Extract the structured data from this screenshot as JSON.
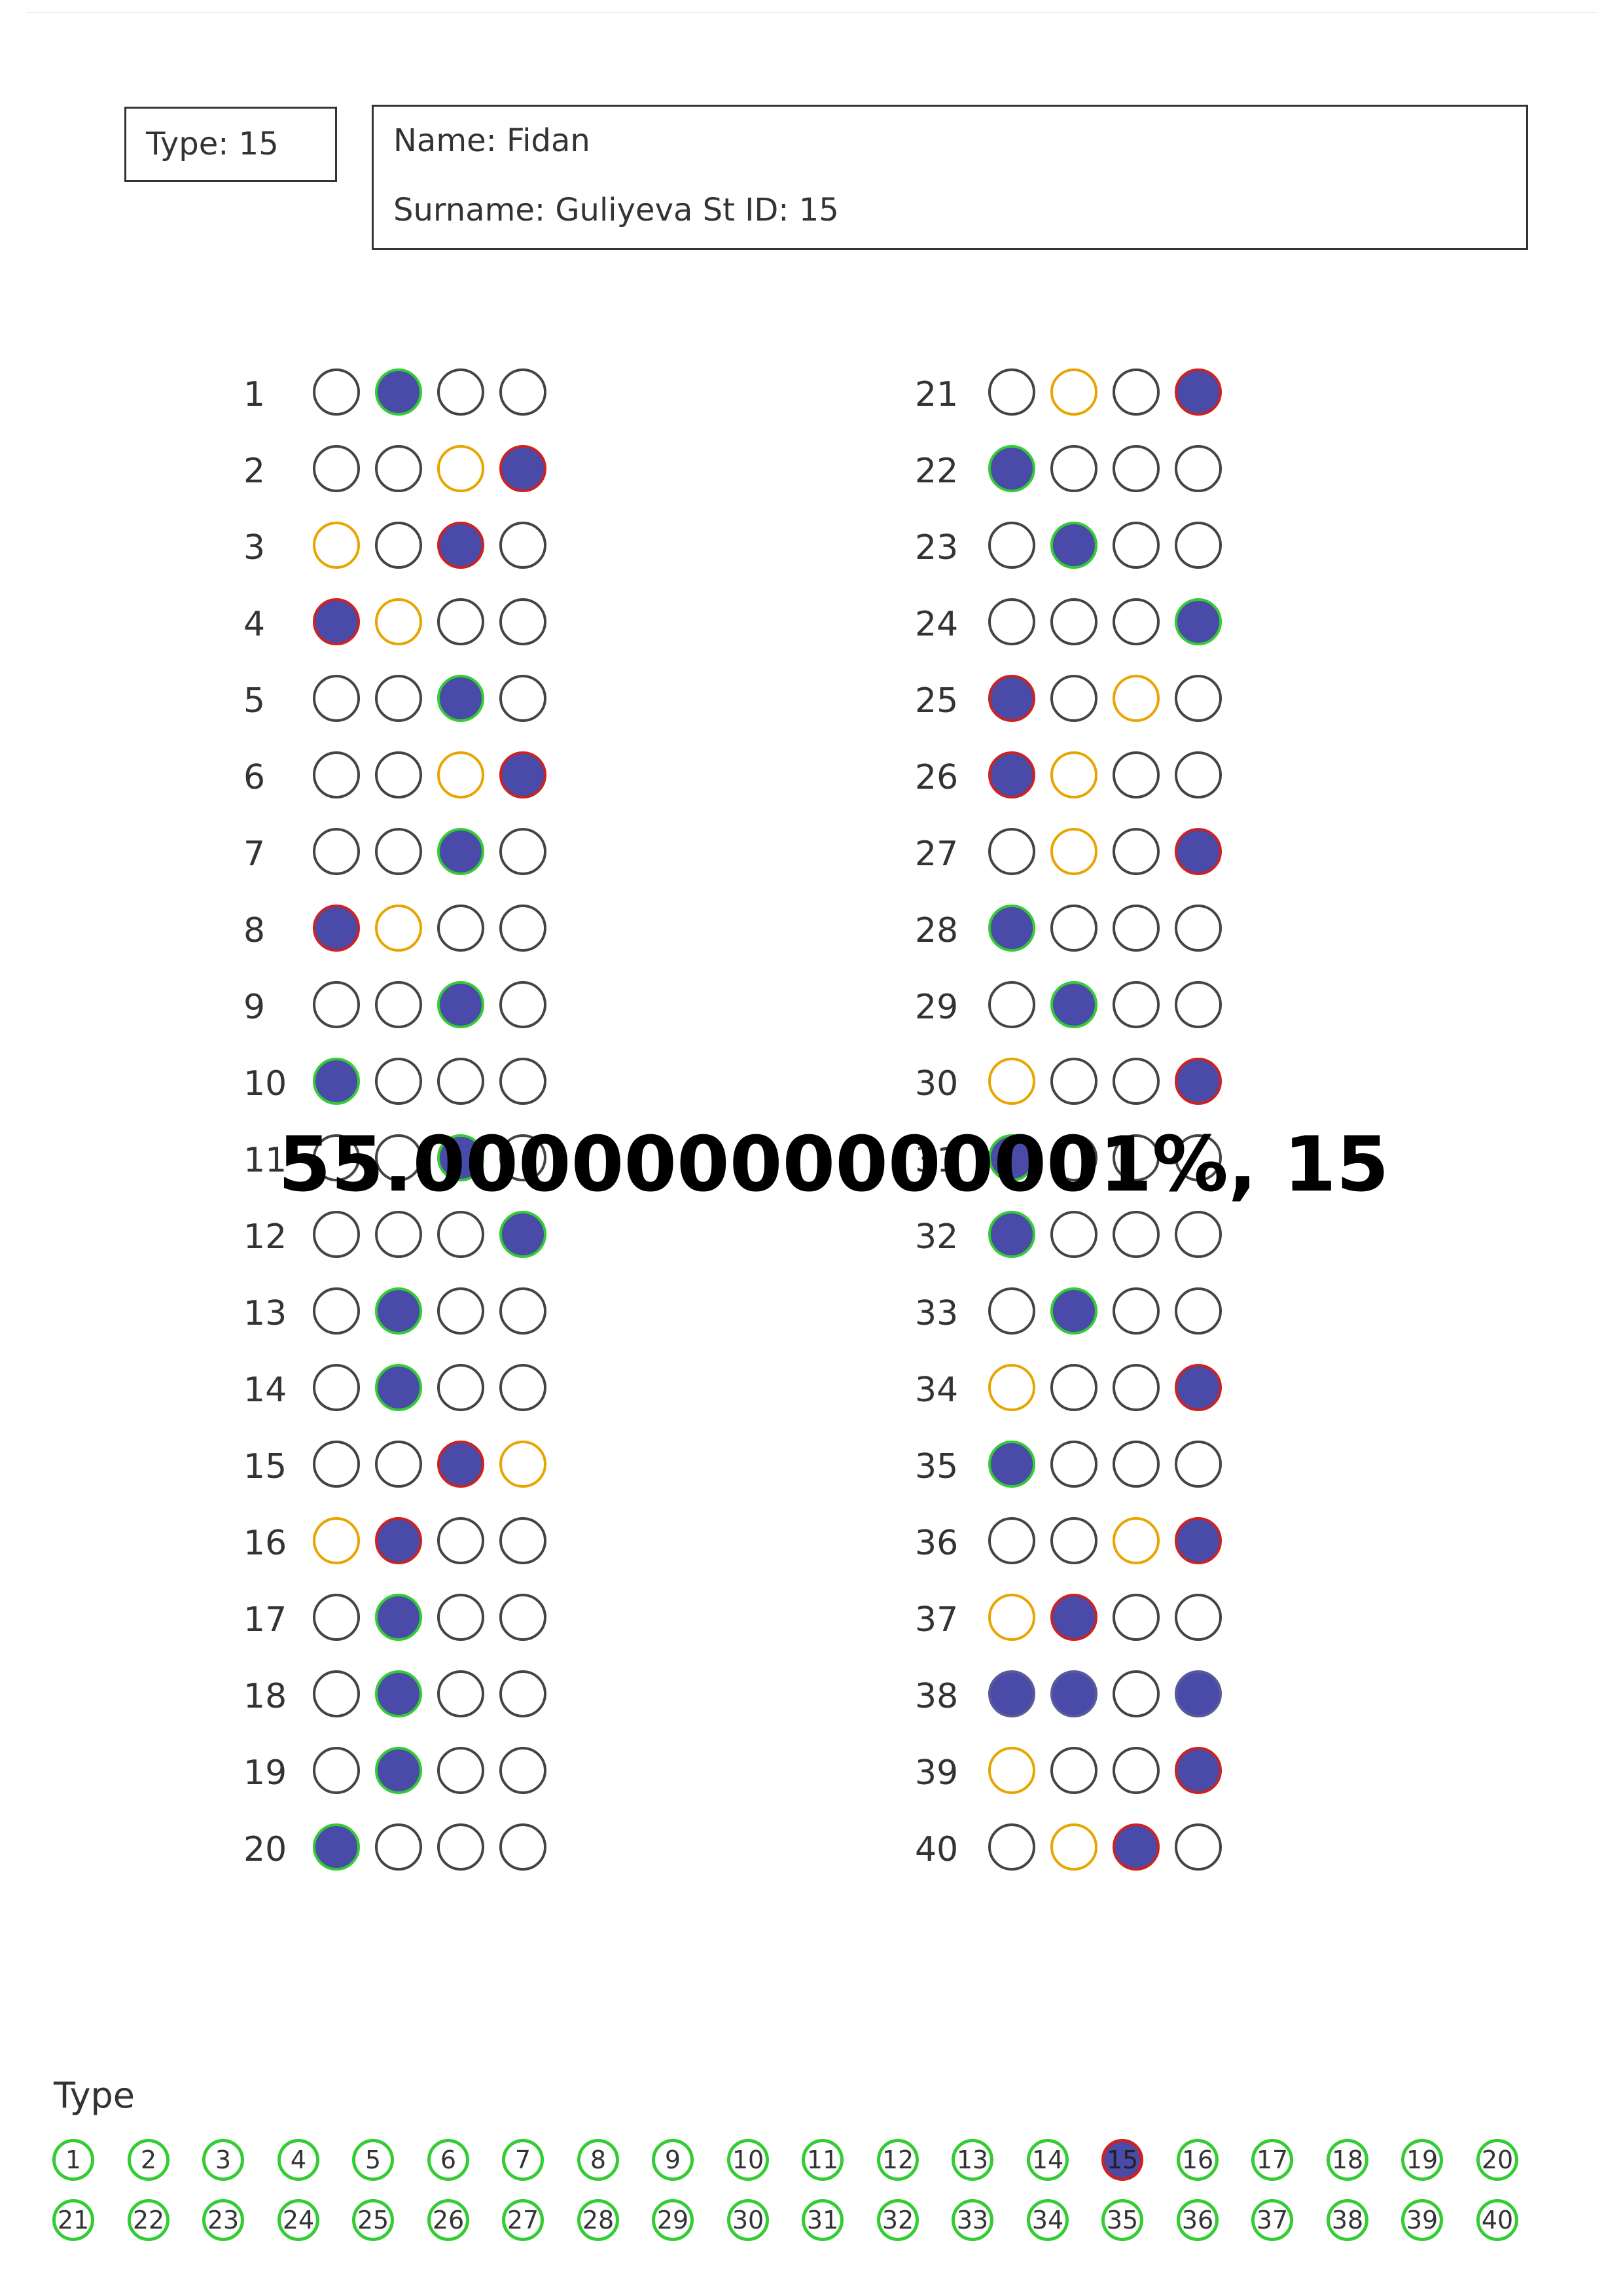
{
  "header": {
    "type_label": "Type:  15",
    "name_label": "Name: Fidan",
    "surname_label": "Surname: Guliyeva  St ID: 15"
  },
  "overlay_text": "55.00000000000001%, 15",
  "colors": {
    "fill": "#4a4aa8",
    "correct": "#33cc33",
    "wrong": "#cc2222",
    "expected": "#e8a500",
    "outline": "#333333"
  },
  "questions": [
    {
      "n": "1",
      "b": [
        "e",
        "fg",
        "e",
        "e"
      ]
    },
    {
      "n": "2",
      "b": [
        "e",
        "e",
        "o",
        "fr"
      ]
    },
    {
      "n": "3",
      "b": [
        "o",
        "e",
        "fr",
        "e"
      ]
    },
    {
      "n": "4",
      "b": [
        "fr",
        "o",
        "e",
        "e"
      ]
    },
    {
      "n": "5",
      "b": [
        "e",
        "e",
        "fg",
        "e"
      ]
    },
    {
      "n": "6",
      "b": [
        "e",
        "e",
        "o",
        "fr"
      ]
    },
    {
      "n": "7",
      "b": [
        "e",
        "e",
        "fg",
        "e"
      ]
    },
    {
      "n": "8",
      "b": [
        "fr",
        "o",
        "e",
        "e"
      ]
    },
    {
      "n": "9",
      "b": [
        "e",
        "e",
        "fg",
        "e"
      ]
    },
    {
      "n": "10",
      "b": [
        "fg",
        "e",
        "e",
        "e"
      ]
    },
    {
      "n": "11",
      "b": [
        "e",
        "e",
        "fg",
        "e"
      ]
    },
    {
      "n": "12",
      "b": [
        "e",
        "e",
        "e",
        "fg"
      ]
    },
    {
      "n": "13",
      "b": [
        "e",
        "fg",
        "e",
        "e"
      ]
    },
    {
      "n": "14",
      "b": [
        "e",
        "fg",
        "e",
        "e"
      ]
    },
    {
      "n": "15",
      "b": [
        "e",
        "e",
        "fr",
        "o"
      ]
    },
    {
      "n": "16",
      "b": [
        "o",
        "fr",
        "e",
        "e"
      ]
    },
    {
      "n": "17",
      "b": [
        "e",
        "fg",
        "e",
        "e"
      ]
    },
    {
      "n": "18",
      "b": [
        "e",
        "fg",
        "e",
        "e"
      ]
    },
    {
      "n": "19",
      "b": [
        "e",
        "fg",
        "e",
        "e"
      ]
    },
    {
      "n": "20",
      "b": [
        "fg",
        "e",
        "e",
        "e"
      ]
    },
    {
      "n": "21",
      "b": [
        "e",
        "o",
        "e",
        "fr"
      ]
    },
    {
      "n": "22",
      "b": [
        "fg",
        "e",
        "e",
        "e"
      ]
    },
    {
      "n": "23",
      "b": [
        "e",
        "fg",
        "e",
        "e"
      ]
    },
    {
      "n": "24",
      "b": [
        "e",
        "e",
        "e",
        "fg"
      ]
    },
    {
      "n": "25",
      "b": [
        "fr",
        "e",
        "o",
        "e"
      ]
    },
    {
      "n": "26",
      "b": [
        "fr",
        "o",
        "e",
        "e"
      ]
    },
    {
      "n": "27",
      "b": [
        "e",
        "o",
        "e",
        "fr"
      ]
    },
    {
      "n": "28",
      "b": [
        "fg",
        "e",
        "e",
        "e"
      ]
    },
    {
      "n": "29",
      "b": [
        "e",
        "fg",
        "e",
        "e"
      ]
    },
    {
      "n": "30",
      "b": [
        "o",
        "e",
        "e",
        "fr"
      ]
    },
    {
      "n": "31",
      "b": [
        "fg",
        "e",
        "e",
        "e"
      ]
    },
    {
      "n": "32",
      "b": [
        "fg",
        "e",
        "e",
        "e"
      ]
    },
    {
      "n": "33",
      "b": [
        "e",
        "fg",
        "e",
        "e"
      ]
    },
    {
      "n": "34",
      "b": [
        "o",
        "e",
        "e",
        "fr"
      ]
    },
    {
      "n": "35",
      "b": [
        "fg",
        "e",
        "e",
        "e"
      ]
    },
    {
      "n": "36",
      "b": [
        "e",
        "e",
        "o",
        "fr"
      ]
    },
    {
      "n": "37",
      "b": [
        "o",
        "fr",
        "e",
        "e"
      ]
    },
    {
      "n": "38",
      "b": [
        "fd",
        "fd",
        "e",
        "fd"
      ]
    },
    {
      "n": "39",
      "b": [
        "o",
        "e",
        "e",
        "fr"
      ]
    },
    {
      "n": "40",
      "b": [
        "e",
        "o",
        "fr",
        "e"
      ]
    }
  ],
  "type_section": {
    "label": "Type",
    "options": [
      "1",
      "2",
      "3",
      "4",
      "5",
      "6",
      "7",
      "8",
      "9",
      "10",
      "11",
      "12",
      "13",
      "14",
      "15",
      "16",
      "17",
      "18",
      "19",
      "20",
      "21",
      "22",
      "23",
      "24",
      "25",
      "26",
      "27",
      "28",
      "29",
      "30",
      "31",
      "32",
      "33",
      "34",
      "35",
      "36",
      "37",
      "38",
      "39",
      "40"
    ],
    "selected": "15"
  }
}
